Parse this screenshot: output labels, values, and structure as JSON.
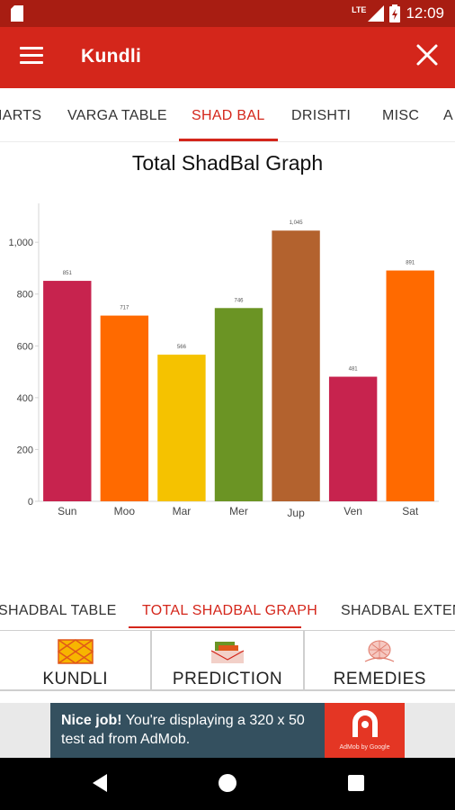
{
  "status_bar": {
    "network": "LTE",
    "time": "12:09",
    "icons": [
      "sd-card-icon",
      "signal-icon",
      "battery-icon"
    ]
  },
  "toolbar": {
    "title": "Kundli",
    "menu_icon": "hamburger-menu-icon",
    "close_icon": "close-icon"
  },
  "top_tabs": [
    {
      "label": "IARTS",
      "active": false
    },
    {
      "label": "VARGA TABLE",
      "active": false
    },
    {
      "label": "SHAD BAL",
      "active": true
    },
    {
      "label": "DRISHTI",
      "active": false
    },
    {
      "label": "MISC",
      "active": false
    }
  ],
  "chart_title": "Total ShadBal Graph",
  "chart_data": {
    "type": "bar",
    "title": "Total ShadBal Graph",
    "categories": [
      "Sun",
      "Moo",
      "Mar",
      "Mer",
      "Jup",
      "Ven",
      "Sat"
    ],
    "values": [
      851,
      717,
      566,
      746,
      1045,
      481,
      891
    ],
    "value_labels": [
      "851",
      "717",
      "566",
      "746",
      "1,045",
      "481",
      "891"
    ],
    "colors": [
      "#c7234e",
      "#ff6a00",
      "#f5c200",
      "#6b9424",
      "#b3622e",
      "#c7234e",
      "#ff6a00"
    ],
    "ylim": [
      0,
      1150
    ],
    "yticks": [
      0,
      200,
      400,
      600,
      800,
      1000
    ],
    "ytick_labels": [
      "0",
      "200",
      "400",
      "600",
      "800",
      "1,000"
    ],
    "grid": false,
    "legend": "none"
  },
  "bottom_tabs": [
    {
      "label": "SHADBAL TABLE",
      "active": false
    },
    {
      "label": "TOTAL SHADBAL GRAPH",
      "active": true
    },
    {
      "label": "SHADBAL EXTEN",
      "active": false
    }
  ],
  "features": [
    {
      "label": "KUNDLI",
      "icon": "kundli-chart-icon"
    },
    {
      "label": "PREDICTION",
      "icon": "prediction-icon"
    },
    {
      "label": "REMEDIES",
      "icon": "remedies-icon"
    }
  ],
  "ad": {
    "headline": "Nice job!",
    "body": " You're displaying a 320 x 50 test ad from AdMob.",
    "logo_text": "AdMob by Google",
    "colors": {
      "background": "#34505f",
      "logo": "#e43624"
    }
  },
  "nav": [
    "back-icon",
    "home-icon",
    "recents-icon"
  ],
  "colors": {
    "primary": "#d4261b",
    "status": "#a81d12"
  }
}
